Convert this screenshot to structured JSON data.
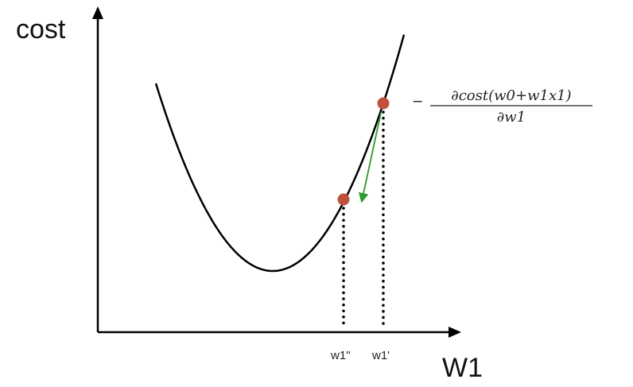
{
  "y_axis": {
    "label": "cost"
  },
  "x_axis": {
    "label": "W1"
  },
  "ticks": {
    "w1_new": "w1''",
    "w1_old": "w1'"
  },
  "gradient_expression": {
    "sign": "−",
    "numerator": "∂cost(w0+w1x1)",
    "denominator": "∂w1"
  },
  "colors": {
    "curve": "#000000",
    "point": "#c0503a",
    "arrow": "#2e9b2e",
    "axis": "#000000"
  },
  "icons": {
    "point": "filled-circle",
    "gradient_arrow": "arrow-down-left"
  }
}
